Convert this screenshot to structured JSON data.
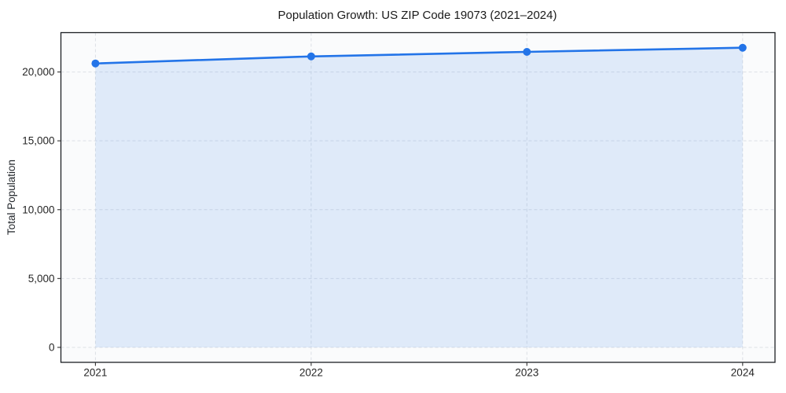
{
  "chart_data": {
    "type": "line",
    "title": "Population Growth: US ZIP Code 19073 (2021–2024)",
    "xlabel": "",
    "ylabel": "Total Population",
    "x": [
      2021,
      2022,
      2023,
      2024
    ],
    "series": [
      {
        "name": "Total Population",
        "values": [
          20620,
          21130,
          21460,
          21760
        ]
      }
    ],
    "xticks": [
      2021,
      2022,
      2023,
      2024
    ],
    "xtick_labels": [
      "2021",
      "2022",
      "2023",
      "2024"
    ],
    "yticks": [
      0,
      5000,
      10000,
      15000,
      20000
    ],
    "ytick_labels": [
      "0",
      "5,000",
      "10,000",
      "15,000",
      "20,000"
    ],
    "xlim": [
      2020.84,
      2024.15
    ],
    "ylim": [
      -1088,
      22858
    ],
    "grid": true,
    "grid_style": "dashed",
    "legend": false,
    "area_fill_to_zero": true,
    "marker": "circle",
    "colors": {
      "line": "#2374e8",
      "marker": "#2374e8",
      "area_fill": "#2374e8",
      "plot_background": "#fafbfc",
      "figure_background": "#ffffff",
      "gridline": "#dce0e5",
      "spine": "#1c1f23",
      "tick": "#333333"
    }
  }
}
